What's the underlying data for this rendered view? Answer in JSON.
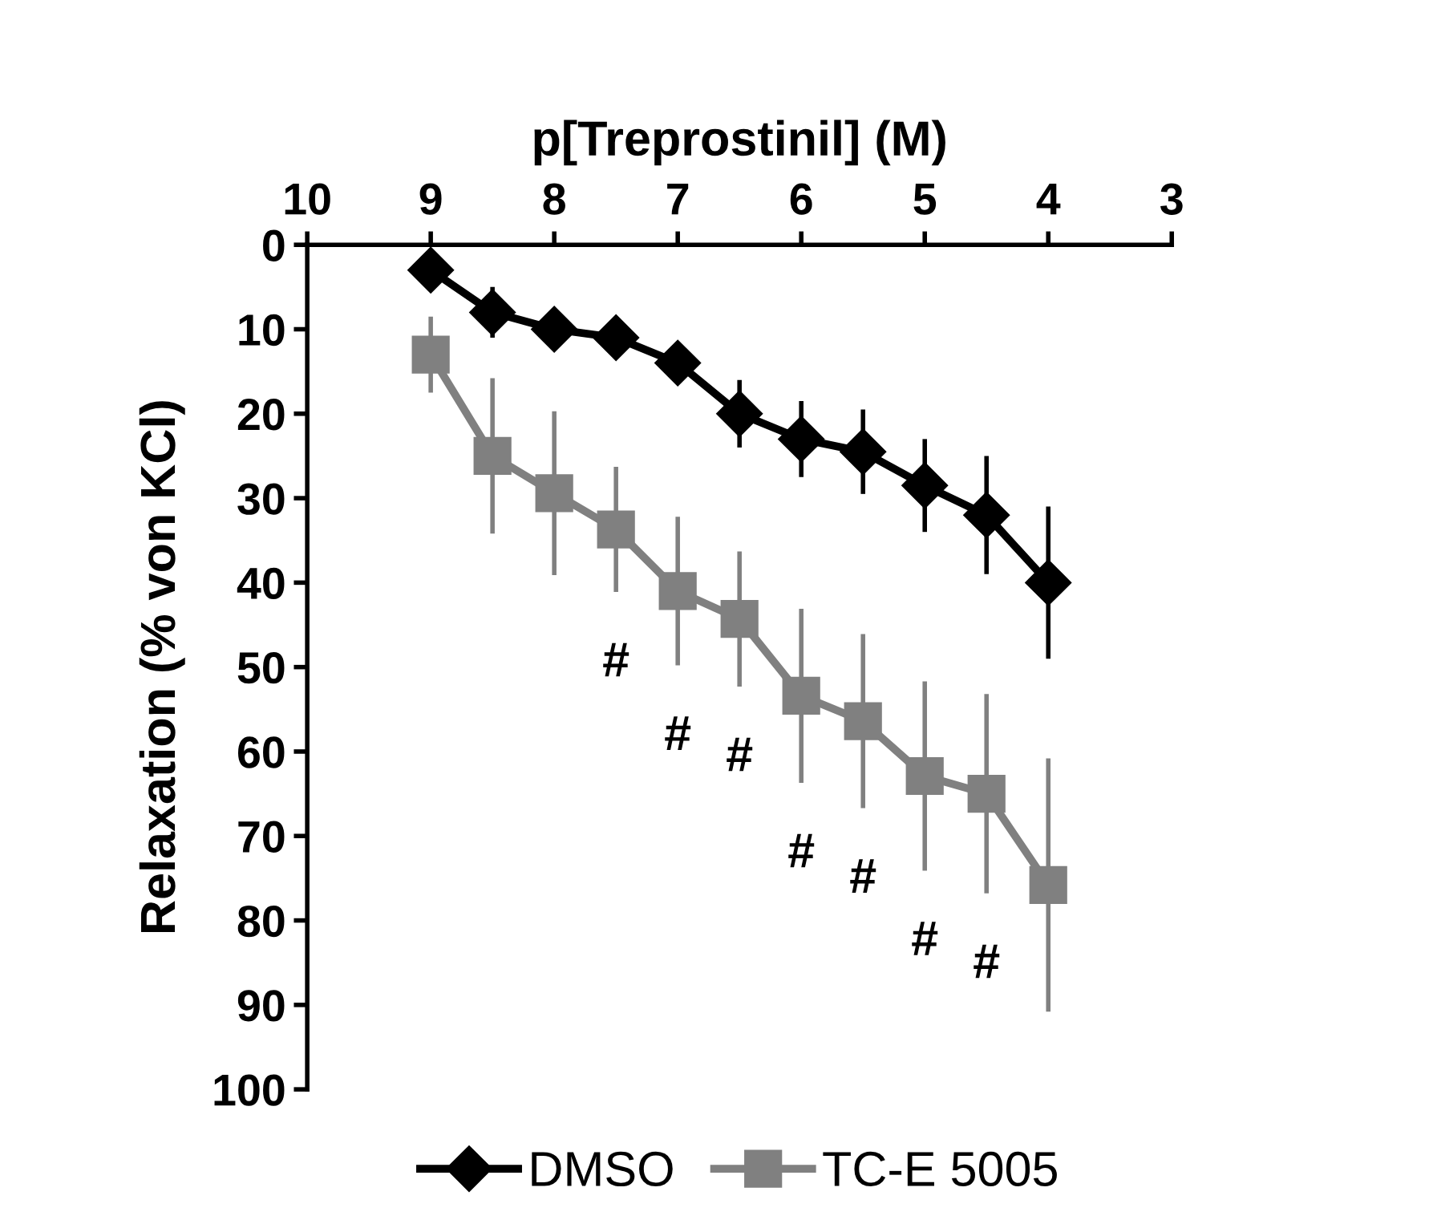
{
  "chart_data": {
    "type": "line",
    "xlabel": "p[Treprostinil] (M)",
    "ylabel": "Relaxation (% von KCl)",
    "x": [
      9,
      8.5,
      8,
      7.5,
      7,
      6.5,
      6,
      5.5,
      5,
      4.5,
      4
    ],
    "xlim": [
      10,
      3
    ],
    "xticks": [
      10,
      9,
      8,
      7,
      6,
      5,
      4,
      3
    ],
    "ylim": [
      100,
      0
    ],
    "yticks": [
      0,
      10,
      20,
      30,
      40,
      50,
      60,
      70,
      80,
      90,
      100
    ],
    "grid": false,
    "legend": "bottom",
    "series": [
      {
        "name": "DMSO",
        "color": "#000000",
        "marker": "diamond",
        "values": [
          3,
          8,
          10,
          11,
          14,
          20,
          23,
          24.5,
          28.5,
          32,
          40
        ],
        "errors": [
          null,
          3,
          null,
          null,
          null,
          4,
          4.5,
          5,
          5.5,
          7,
          9
        ]
      },
      {
        "name": "TC-E 5005",
        "color": "#808080",
        "marker": "square",
        "values": [
          13,
          25,
          29.4,
          33.7,
          41,
          44.3,
          53.4,
          56.4,
          62.9,
          65,
          75.8
        ],
        "errors": [
          4.5,
          9.2,
          9.7,
          7.4,
          8.8,
          8,
          10.3,
          10.3,
          11.2,
          11.8,
          15
        ]
      }
    ],
    "annotations": [
      "#",
      "#",
      "#",
      "#",
      "#",
      "#",
      "#"
    ]
  }
}
